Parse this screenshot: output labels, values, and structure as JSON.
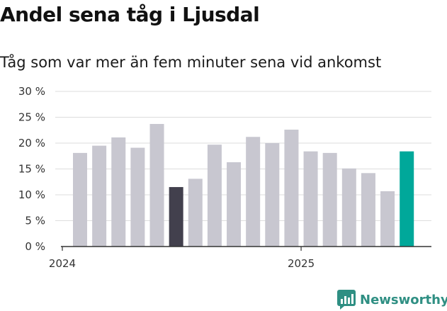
{
  "header": {
    "title": "Andel sena tåg i Ljusdal",
    "subtitle": "Tåg som var mer än fem minuter sena vid ankomst"
  },
  "brand": {
    "name": "Newsworthy",
    "icon": "newsworthy-logo-icon"
  },
  "colors": {
    "bar_default": "#c8c7d0",
    "bar_highlight_dark": "#42404d",
    "bar_highlight_latest": "#00a89a",
    "grid": "#dddddd",
    "axis": "#333333",
    "brand": "#2f8f83"
  },
  "chart_data": {
    "type": "bar",
    "title": "Andel sena tåg i Ljusdal",
    "subtitle": "Tåg som var mer än fem minuter sena vid ankomst",
    "x": [
      "2024-01",
      "2024-02",
      "2024-03",
      "2024-04",
      "2024-05",
      "2024-06",
      "2024-07",
      "2024-08",
      "2024-09",
      "2024-10",
      "2024-11",
      "2024-12",
      "2025-01",
      "2025-02",
      "2025-03",
      "2025-04",
      "2025-05",
      "2025-06"
    ],
    "values": [
      18.1,
      19.5,
      21.1,
      19.1,
      23.7,
      11.5,
      13.1,
      19.7,
      16.3,
      21.2,
      20.0,
      22.6,
      18.4,
      18.1,
      15.1,
      14.2,
      10.7,
      18.4
    ],
    "highlight": {
      "dark": [
        5
      ],
      "accent": [
        17
      ]
    },
    "x_tick_labels": [
      {
        "label": "2024",
        "at": "2024-01"
      },
      {
        "label": "2025",
        "at": "2025-01"
      }
    ],
    "y_ticks": [
      0,
      5,
      10,
      15,
      20,
      25,
      30
    ],
    "y_tick_labels": [
      "0 %",
      "5 %",
      "10 %",
      "15 %",
      "20 %",
      "25 %",
      "30 %"
    ],
    "ylim": [
      0,
      30
    ],
    "grid": true,
    "legend": "none"
  }
}
